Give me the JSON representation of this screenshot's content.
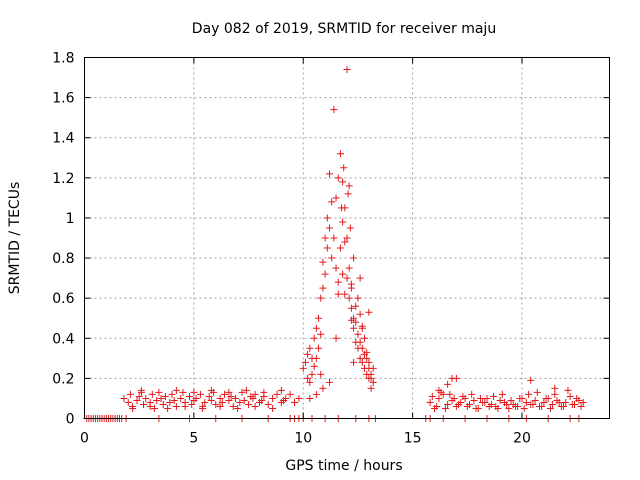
{
  "chart_data": {
    "type": "scatter",
    "title": "Day 082 of 2019, SRMTID for receiver maju",
    "xlabel": "GPS time / hours",
    "ylabel": "SRMTID / TECUs",
    "xlim": [
      0,
      24
    ],
    "ylim": [
      0,
      1.8
    ],
    "xticks": [
      0,
      5,
      10,
      15,
      20
    ],
    "xtick_labels": [
      "0",
      "5",
      "10",
      "15",
      "20"
    ],
    "yticks": [
      0,
      0.2,
      0.4,
      0.6,
      0.8,
      1.0,
      1.2,
      1.4,
      1.6,
      1.8
    ],
    "ytick_labels": [
      "0",
      "0.2",
      "0.4",
      "0.6",
      "0.8",
      "1",
      "1.2",
      "1.4",
      "1.6",
      "1.8"
    ],
    "grid": true,
    "marker": "+",
    "color": "#e41a1c",
    "series": [
      {
        "name": "SRMTID",
        "x": [
          0.1,
          0.3,
          0.5,
          0.7,
          0.9,
          1.1,
          1.3,
          1.5,
          1.7,
          1.9,
          1.8,
          2.0,
          2.1,
          2.2,
          2.4,
          2.5,
          2.6,
          2.7,
          2.8,
          3.0,
          3.1,
          3.2,
          3.3,
          3.5,
          3.6,
          3.7,
          3.9,
          4.0,
          4.1,
          4.2,
          4.4,
          4.5,
          4.6,
          4.8,
          4.9,
          5.0,
          5.1,
          5.3,
          5.4,
          5.5,
          5.7,
          5.8,
          5.9,
          6.0,
          6.2,
          6.3,
          6.4,
          6.6,
          6.7,
          6.8,
          6.9,
          7.1,
          7.2,
          7.3,
          7.5,
          7.6,
          7.7,
          7.8,
          8.0,
          8.1,
          8.2,
          8.4,
          8.6,
          8.8,
          9.0,
          9.1,
          2.2,
          2.6,
          3.0,
          3.4,
          3.8,
          4.2,
          4.6,
          5.0,
          5.4,
          5.8,
          6.2,
          6.6,
          7.0,
          7.4,
          7.8,
          8.2,
          8.6,
          9.0,
          9.2,
          9.4,
          9.6,
          9.8,
          10.0,
          10.1,
          10.2,
          10.2,
          10.3,
          10.3,
          10.4,
          10.4,
          10.5,
          10.5,
          10.6,
          10.6,
          10.7,
          10.7,
          10.8,
          10.8,
          10.9,
          10.9,
          11.0,
          11.0,
          11.1,
          11.1,
          11.2,
          11.2,
          11.3,
          11.3,
          11.4,
          11.4,
          11.5,
          11.5,
          11.6,
          11.6,
          11.7,
          11.7,
          11.8,
          11.8,
          11.9,
          11.9,
          12.0,
          12.0,
          12.1,
          12.1,
          12.2,
          12.2,
          12.3,
          12.3,
          12.4,
          12.4,
          12.5,
          12.5,
          12.6,
          12.6,
          12.7,
          12.7,
          12.8,
          12.8,
          12.9,
          12.9,
          13.0,
          13.0,
          13.1,
          13.1,
          13.2,
          13.2,
          10.3,
          10.6,
          10.9,
          11.2,
          11.5,
          11.6,
          11.8,
          11.9,
          12.0,
          12.1,
          12.2,
          12.3,
          12.4,
          12.5,
          12.6,
          12.7,
          12.8,
          12.9,
          13.0,
          13.1,
          12.05,
          12.15,
          11.85,
          12.3,
          12.6,
          11.75,
          12.2,
          12.7,
          13.0,
          10.8,
          15.8,
          16.0,
          16.2,
          16.4,
          16.6,
          16.8,
          17.0,
          17.2,
          17.4,
          17.6,
          17.8,
          18.0,
          18.2,
          18.4,
          18.6,
          18.8,
          19.0,
          19.2,
          19.4,
          19.6,
          19.8,
          20.0,
          20.2,
          20.4,
          20.6,
          20.8,
          21.0,
          21.2,
          21.4,
          21.6,
          21.8,
          22.0,
          22.2,
          22.4,
          22.6,
          22.8,
          15.9,
          16.1,
          16.3,
          16.5,
          16.7,
          16.9,
          17.1,
          17.3,
          17.5,
          17.7,
          17.9,
          18.1,
          18.3,
          18.5,
          18.7,
          18.9,
          19.1,
          19.3,
          19.5,
          19.7,
          19.9,
          20.1,
          20.3,
          20.5,
          20.7,
          20.9,
          21.1,
          21.3,
          21.5,
          21.7,
          21.9,
          22.1,
          22.3,
          22.5,
          22.7,
          16.8,
          17.0,
          16.6,
          20.4,
          21.5,
          16.2,
          0.2,
          0.4,
          0.6,
          0.8,
          1.0,
          1.2,
          1.4,
          1.6,
          3.4,
          4.8,
          6.0,
          7.2,
          8.4,
          9.4,
          9.6,
          9.8,
          10.0,
          10.4,
          11.0,
          11.6,
          12.4,
          13.0,
          13.3,
          15.6,
          15.8,
          16.4,
          17.4,
          18.4,
          19.4,
          20.2,
          21.2,
          22.2,
          22.6
        ],
        "y": [
          0.0,
          0.0,
          0.0,
          0.0,
          0.0,
          0.0,
          0.0,
          0.0,
          0.0,
          0.0,
          0.1,
          0.08,
          0.12,
          0.06,
          0.09,
          0.11,
          0.13,
          0.07,
          0.1,
          0.08,
          0.12,
          0.05,
          0.09,
          0.1,
          0.07,
          0.11,
          0.08,
          0.12,
          0.09,
          0.06,
          0.1,
          0.13,
          0.08,
          0.11,
          0.07,
          0.09,
          0.1,
          0.12,
          0.06,
          0.08,
          0.11,
          0.09,
          0.13,
          0.07,
          0.1,
          0.08,
          0.12,
          0.09,
          0.11,
          0.06,
          0.1,
          0.08,
          0.13,
          0.09,
          0.07,
          0.11,
          0.1,
          0.12,
          0.08,
          0.09,
          0.11,
          0.07,
          0.1,
          0.12,
          0.08,
          0.09,
          0.05,
          0.14,
          0.06,
          0.13,
          0.05,
          0.14,
          0.06,
          0.13,
          0.05,
          0.14,
          0.06,
          0.13,
          0.05,
          0.14,
          0.06,
          0.13,
          0.05,
          0.14,
          0.1,
          0.12,
          0.08,
          0.1,
          0.25,
          0.28,
          0.2,
          0.32,
          0.35,
          0.18,
          0.3,
          0.22,
          0.4,
          0.26,
          0.45,
          0.3,
          0.5,
          0.35,
          0.6,
          0.42,
          0.78,
          0.65,
          0.9,
          0.72,
          1.0,
          0.85,
          1.22,
          0.95,
          1.08,
          0.8,
          1.54,
          0.9,
          1.1,
          0.75,
          1.2,
          0.68,
          1.32,
          0.85,
          1.18,
          0.72,
          1.05,
          0.62,
          0.9,
          0.7,
          0.75,
          0.6,
          0.65,
          0.55,
          0.5,
          0.45,
          0.48,
          0.38,
          0.42,
          0.35,
          0.38,
          0.3,
          0.35,
          0.28,
          0.32,
          0.25,
          0.3,
          0.22,
          0.28,
          0.2,
          0.2,
          0.15,
          0.25,
          0.18,
          0.1,
          0.12,
          0.15,
          0.18,
          0.4,
          0.62,
          0.98,
          0.88,
          1.74,
          1.16,
          0.49,
          0.28,
          0.56,
          0.6,
          0.52,
          0.45,
          0.4,
          0.33,
          0.25,
          0.22,
          1.12,
          0.95,
          1.25,
          0.8,
          0.7,
          1.05,
          0.67,
          0.46,
          0.53,
          0.22,
          0.08,
          0.05,
          0.1,
          0.12,
          0.07,
          0.09,
          0.06,
          0.08,
          0.1,
          0.07,
          0.09,
          0.05,
          0.08,
          0.1,
          0.07,
          0.06,
          0.09,
          0.08,
          0.05,
          0.07,
          0.06,
          0.1,
          0.08,
          0.07,
          0.09,
          0.06,
          0.08,
          0.1,
          0.07,
          0.09,
          0.06,
          0.08,
          0.11,
          0.07,
          0.09,
          0.08,
          0.11,
          0.06,
          0.13,
          0.05,
          0.12,
          0.1,
          0.07,
          0.11,
          0.06,
          0.12,
          0.05,
          0.1,
          0.08,
          0.06,
          0.11,
          0.05,
          0.12,
          0.07,
          0.09,
          0.06,
          0.1,
          0.05,
          0.12,
          0.07,
          0.13,
          0.06,
          0.1,
          0.05,
          0.12,
          0.08,
          0.06,
          0.14,
          0.07,
          0.1,
          0.06,
          0.2,
          0.2,
          0.17,
          0.19,
          0.15,
          0.14,
          0.0,
          0.0,
          0.0,
          0.0,
          0.0,
          0.0,
          0.0,
          0.0,
          0.0,
          0.0,
          0.0,
          0.0,
          0.0,
          0.0,
          0.0,
          0.0,
          0.0,
          0.0,
          0.0,
          0.0,
          0.0,
          0.0,
          0.0,
          0.0,
          0.0,
          0.0,
          0.0,
          0.0,
          0.0,
          0.0,
          0.0,
          0.0,
          0.0
        ]
      }
    ]
  }
}
